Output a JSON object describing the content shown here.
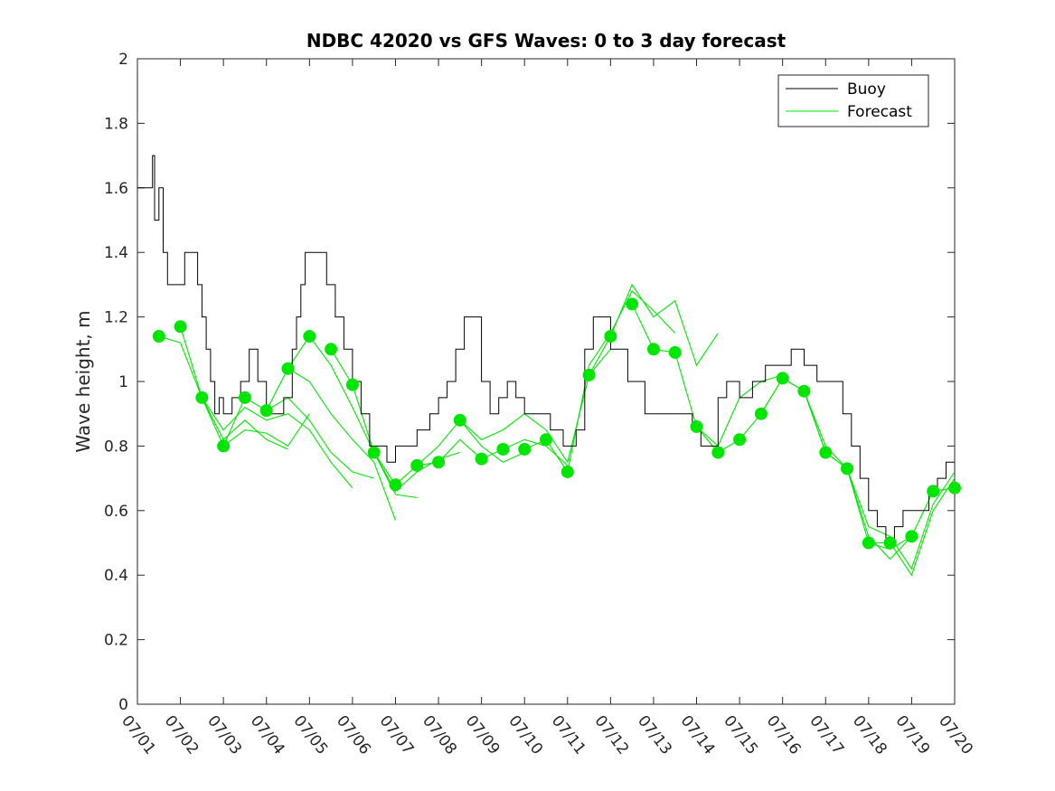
{
  "chart_data": {
    "type": "line",
    "title": "NDBC 42020 vs GFS Waves: 0 to 3 day forecast",
    "xlabel": "",
    "ylabel": "Wave height, m",
    "ylim": [
      0,
      2
    ],
    "yticks": [
      0,
      0.2,
      0.4,
      0.6,
      0.8,
      1,
      1.2,
      1.4,
      1.6,
      1.8,
      2
    ],
    "ytick_labels": [
      "0",
      "0.2",
      "0.4",
      "0.6",
      "0.8",
      "1",
      "1.2",
      "1.4",
      "1.6",
      "1.8",
      "2"
    ],
    "xlim_day": [
      1,
      20
    ],
    "xticks_day": [
      1,
      2,
      3,
      4,
      5,
      6,
      7,
      8,
      9,
      10,
      11,
      12,
      13,
      14,
      15,
      16,
      17,
      18,
      19,
      20
    ],
    "xtick_labels": [
      "07/01",
      "07/02",
      "07/03",
      "07/04",
      "07/05",
      "07/06",
      "07/07",
      "07/08",
      "07/09",
      "07/10",
      "07/11",
      "07/12",
      "07/13",
      "07/14",
      "07/15",
      "07/16",
      "07/17",
      "07/18",
      "07/19",
      "07/20"
    ],
    "grid": false,
    "legend_position": "top-right",
    "legend": [
      {
        "name": "Buoy",
        "color": "#000000"
      },
      {
        "name": "Forecast",
        "color": "#00e600"
      }
    ],
    "colors": {
      "buoy": "#000000",
      "forecast": "#00e600",
      "axes": "#262626"
    },
    "buoy": {
      "day": [
        1.0,
        1.35,
        1.4,
        1.5,
        1.6,
        1.7,
        1.8,
        1.9,
        2.0,
        2.1,
        2.2,
        2.3,
        2.4,
        2.5,
        2.6,
        2.7,
        2.8,
        2.9,
        3.0,
        3.2,
        3.4,
        3.6,
        3.8,
        4.0,
        4.2,
        4.4,
        4.6,
        4.7,
        4.8,
        4.9,
        5.0,
        5.2,
        5.4,
        5.6,
        5.8,
        6.0,
        6.2,
        6.4,
        6.6,
        6.8,
        7.0,
        7.2,
        7.5,
        7.8,
        8.0,
        8.2,
        8.4,
        8.6,
        8.8,
        9.0,
        9.2,
        9.4,
        9.6,
        9.8,
        10.0,
        10.3,
        10.6,
        10.9,
        11.2,
        11.4,
        11.6,
        12.0,
        12.4,
        12.8,
        13.2,
        13.6,
        13.9,
        14.1,
        14.3,
        14.5,
        14.7,
        15.0,
        15.3,
        15.6,
        15.9,
        16.2,
        16.5,
        16.8,
        17.1,
        17.4,
        17.6,
        17.8,
        18.0,
        18.2,
        18.4,
        18.6,
        18.8,
        19.0,
        19.2,
        19.4,
        19.6,
        19.8,
        20.0
      ],
      "values": [
        1.6,
        1.7,
        1.5,
        1.6,
        1.4,
        1.3,
        1.3,
        1.3,
        1.3,
        1.4,
        1.4,
        1.4,
        1.3,
        1.2,
        1.1,
        1.0,
        0.9,
        0.95,
        0.9,
        0.95,
        1.0,
        1.1,
        1.0,
        0.9,
        0.9,
        0.95,
        1.1,
        1.2,
        1.3,
        1.4,
        1.4,
        1.4,
        1.3,
        1.2,
        1.1,
        1.0,
        0.9,
        0.8,
        0.8,
        0.75,
        0.8,
        0.8,
        0.85,
        0.9,
        0.95,
        1.0,
        1.1,
        1.2,
        1.2,
        1.0,
        0.9,
        0.95,
        1.0,
        0.95,
        0.9,
        0.9,
        0.85,
        0.8,
        0.85,
        1.1,
        1.2,
        1.1,
        1.0,
        0.9,
        0.9,
        0.9,
        0.85,
        0.8,
        0.8,
        0.95,
        1.0,
        0.95,
        1.0,
        1.05,
        1.05,
        1.1,
        1.05,
        1.0,
        1.0,
        0.9,
        0.8,
        0.7,
        0.6,
        0.55,
        0.5,
        0.55,
        0.6,
        0.6,
        0.6,
        0.65,
        0.7,
        0.75,
        0.75
      ]
    },
    "forecast_dots": {
      "day": [
        1.5,
        2.0,
        2.5,
        3.0,
        3.5,
        4.0,
        4.5,
        5.0,
        5.5,
        6.0,
        6.5,
        7.0,
        7.5,
        8.0,
        8.5,
        9.0,
        9.5,
        10.0,
        10.5,
        11.0,
        11.5,
        12.0,
        12.5,
        13.0,
        13.5,
        14.0,
        14.5,
        15.0,
        15.5,
        16.0,
        16.5,
        17.0,
        17.5,
        18.0,
        18.5,
        19.0,
        19.5,
        20.0
      ],
      "values": [
        1.14,
        1.17,
        0.95,
        0.8,
        0.95,
        0.91,
        1.04,
        1.14,
        1.1,
        0.99,
        0.78,
        0.68,
        0.74,
        0.75,
        0.88,
        0.76,
        0.79,
        0.79,
        0.82,
        0.72,
        1.02,
        1.14,
        1.24,
        1.1,
        1.09,
        0.86,
        0.78,
        0.82,
        0.9,
        1.01,
        0.97,
        0.78,
        0.73,
        0.5,
        0.5,
        0.52,
        0.66,
        0.67
      ]
    },
    "forecast_runs": [
      {
        "day": [
          1.5,
          2.0,
          2.5,
          3.0,
          3.5,
          4.0,
          4.5
        ],
        "values": [
          1.14,
          1.12,
          0.95,
          0.82,
          0.88,
          0.82,
          0.79
        ]
      },
      {
        "day": [
          2.0,
          2.5,
          3.0,
          3.5,
          4.0,
          4.5,
          5.0
        ],
        "values": [
          1.17,
          0.95,
          0.8,
          0.85,
          0.84,
          0.8,
          0.9
        ]
      },
      {
        "day": [
          2.5,
          3.0,
          3.5,
          4.0,
          4.5,
          5.0,
          5.5,
          6.0
        ],
        "values": [
          0.95,
          0.85,
          0.92,
          0.88,
          0.9,
          0.85,
          0.75,
          0.67
        ]
      },
      {
        "day": [
          3.0,
          3.5,
          4.0,
          4.5,
          5.0,
          5.5,
          6.0,
          6.5
        ],
        "values": [
          0.8,
          0.95,
          0.91,
          0.95,
          0.88,
          0.78,
          0.72,
          0.7
        ]
      },
      {
        "day": [
          4.0,
          4.5,
          5.0,
          5.5,
          6.0,
          6.5,
          7.0
        ],
        "values": [
          0.91,
          1.04,
          1.0,
          0.9,
          0.82,
          0.75,
          0.57
        ]
      },
      {
        "day": [
          4.5,
          5.0,
          5.5,
          6.0,
          6.5,
          7.0,
          7.5
        ],
        "values": [
          1.04,
          1.14,
          1.05,
          0.92,
          0.78,
          0.65,
          0.64
        ]
      },
      {
        "day": [
          5.5,
          6.0,
          6.5,
          7.0,
          7.5,
          8.0,
          8.5
        ],
        "values": [
          1.1,
          0.99,
          0.78,
          0.66,
          0.72,
          0.76,
          0.78
        ]
      },
      {
        "day": [
          6.5,
          7.0,
          7.5,
          8.0,
          8.5,
          9.0,
          9.5,
          10.0
        ],
        "values": [
          0.78,
          0.68,
          0.74,
          0.8,
          0.88,
          0.8,
          0.75,
          0.78
        ]
      },
      {
        "day": [
          7.5,
          8.0,
          8.5,
          9.0,
          9.5,
          10.0,
          10.5,
          11.0
        ],
        "values": [
          0.74,
          0.75,
          0.82,
          0.76,
          0.79,
          0.82,
          0.8,
          0.74
        ]
      },
      {
        "day": [
          8.5,
          9.0,
          9.5,
          10.0,
          10.5,
          11.0,
          11.5,
          12.0
        ],
        "values": [
          0.88,
          0.82,
          0.85,
          0.9,
          0.85,
          0.75,
          1.02,
          1.1
        ]
      },
      {
        "day": [
          10.0,
          10.5,
          11.0,
          11.5,
          12.0,
          12.5,
          13.0,
          13.5
        ],
        "values": [
          0.79,
          0.82,
          0.72,
          1.05,
          1.15,
          1.28,
          1.22,
          1.15
        ]
      },
      {
        "day": [
          11.5,
          12.0,
          12.5,
          13.0,
          13.5,
          14.0,
          14.5
        ],
        "values": [
          1.02,
          1.14,
          1.3,
          1.2,
          1.25,
          1.05,
          1.15
        ]
      },
      {
        "day": [
          12.5,
          13.0,
          13.5,
          14.0,
          14.5,
          15.0,
          15.5,
          16.0
        ],
        "values": [
          1.24,
          1.1,
          1.09,
          0.86,
          0.8,
          0.95,
          1.0,
          1.02
        ]
      },
      {
        "day": [
          14.0,
          14.5,
          15.0,
          15.5,
          16.0,
          16.5,
          17.0,
          17.5
        ],
        "values": [
          0.86,
          0.78,
          0.82,
          0.9,
          1.01,
          0.97,
          0.8,
          0.73
        ]
      },
      {
        "day": [
          15.5,
          16.0,
          16.5,
          17.0,
          17.5,
          18.0,
          18.5,
          19.0
        ],
        "values": [
          0.9,
          1.01,
          0.97,
          0.78,
          0.73,
          0.52,
          0.45,
          0.52
        ]
      },
      {
        "day": [
          16.5,
          17.0,
          17.5,
          18.0,
          18.5,
          19.0,
          19.5,
          20.0
        ],
        "values": [
          0.97,
          0.78,
          0.73,
          0.55,
          0.52,
          0.42,
          0.62,
          0.72
        ]
      },
      {
        "day": [
          17.5,
          18.0,
          18.5,
          19.0,
          19.5,
          20.0
        ],
        "values": [
          0.73,
          0.5,
          0.5,
          0.4,
          0.6,
          0.7
        ]
      },
      {
        "day": [
          18.0,
          18.5,
          19.0,
          19.5,
          20.0
        ],
        "values": [
          0.5,
          0.48,
          0.52,
          0.66,
          0.67
        ]
      }
    ]
  }
}
